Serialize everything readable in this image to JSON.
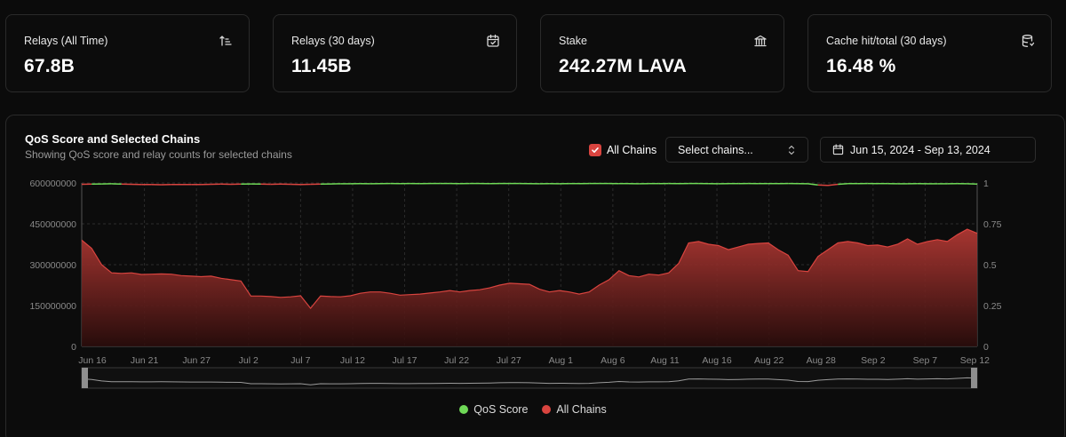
{
  "stats": [
    {
      "label": "Relays (All Time)",
      "value": "67.8B",
      "icon": "sort-ascending-icon"
    },
    {
      "label": "Relays (30 days)",
      "value": "11.45B",
      "icon": "calendar-check-icon"
    },
    {
      "label": "Stake",
      "value": "242.27M LAVA",
      "icon": "bank-icon"
    },
    {
      "label": "Cache hit/total (30 days)",
      "value": "16.48 %",
      "icon": "database-icon"
    }
  ],
  "panel": {
    "title": "QoS Score and Selected Chains",
    "subtitle": "Showing QoS score and relay counts for selected chains",
    "all_chains_label": "All Chains",
    "all_chains_checked": true,
    "select_placeholder": "Select chains...",
    "date_range": "Jun 15, 2024 - Sep 13, 2024"
  },
  "colors": {
    "qos_good": "#6fd957",
    "qos_bad": "#d9443f",
    "relays": "#d9443f",
    "accent": "#d9443f"
  },
  "chart_data": {
    "type": "area",
    "x_ticks": [
      "Jun 16",
      "Jun 21",
      "Jun 27",
      "Jul 2",
      "Jul 7",
      "Jul 12",
      "Jul 17",
      "Jul 22",
      "Jul 27",
      "Aug 1",
      "Aug 6",
      "Aug 11",
      "Aug 16",
      "Aug 22",
      "Aug 28",
      "Sep 2",
      "Sep 7",
      "Sep 12"
    ],
    "y_left": {
      "ticks": [
        "600000000",
        "450000000",
        "300000000",
        "150000000",
        "0"
      ],
      "range": [
        0,
        600000000
      ]
    },
    "y_right": {
      "ticks": [
        "1",
        "0.75",
        "0.5",
        "0.25",
        "0"
      ],
      "range": [
        0,
        1
      ]
    },
    "grid": true,
    "legend_position": "bottom-center",
    "series": [
      {
        "name": "QoS Score",
        "axis": "right",
        "values": [
          0.992,
          0.993,
          0.994,
          0.995,
          0.993,
          0.992,
          0.991,
          0.99,
          0.989,
          0.99,
          0.991,
          0.99,
          0.991,
          0.992,
          0.993,
          0.992,
          0.993,
          0.994,
          0.993,
          0.992,
          0.993,
          0.992,
          0.991,
          0.992,
          0.993,
          0.994,
          0.995,
          0.995,
          0.996,
          0.995,
          0.996,
          0.997,
          0.996,
          0.997,
          0.996,
          0.997,
          0.997,
          0.997,
          0.996,
          0.997,
          0.997,
          0.996,
          0.997,
          0.997,
          0.997,
          0.996,
          0.995,
          0.996,
          0.995,
          0.996,
          0.996,
          0.997,
          0.997,
          0.997,
          0.996,
          0.996,
          0.995,
          0.996,
          0.996,
          0.997,
          0.996,
          0.997,
          0.997,
          0.996,
          0.995,
          0.996,
          0.996,
          0.997,
          0.996,
          0.996,
          0.996,
          0.997,
          0.996,
          0.995,
          0.988,
          0.985,
          0.992,
          0.996,
          0.996,
          0.997,
          0.996,
          0.996,
          0.995,
          0.995,
          0.996,
          0.995,
          0.995,
          0.995,
          0.996,
          0.995,
          0.993
        ]
      },
      {
        "name": "All Chains",
        "axis": "left",
        "values": [
          390000000,
          360000000,
          300000000,
          270000000,
          268000000,
          270000000,
          264000000,
          265000000,
          266000000,
          265000000,
          260000000,
          258000000,
          256000000,
          258000000,
          250000000,
          245000000,
          240000000,
          185000000,
          185000000,
          183000000,
          180000000,
          182000000,
          186000000,
          140000000,
          185000000,
          183000000,
          182000000,
          186000000,
          195000000,
          200000000,
          200000000,
          195000000,
          188000000,
          190000000,
          192000000,
          196000000,
          200000000,
          205000000,
          200000000,
          205000000,
          208000000,
          215000000,
          225000000,
          232000000,
          230000000,
          228000000,
          210000000,
          200000000,
          205000000,
          200000000,
          192000000,
          200000000,
          225000000,
          245000000,
          278000000,
          260000000,
          255000000,
          265000000,
          262000000,
          270000000,
          305000000,
          380000000,
          385000000,
          375000000,
          370000000,
          355000000,
          365000000,
          375000000,
          378000000,
          380000000,
          355000000,
          335000000,
          278000000,
          275000000,
          330000000,
          355000000,
          380000000,
          385000000,
          380000000,
          370000000,
          372000000,
          365000000,
          375000000,
          395000000,
          375000000,
          385000000,
          392000000,
          385000000,
          410000000,
          430000000,
          415000000
        ]
      }
    ]
  }
}
